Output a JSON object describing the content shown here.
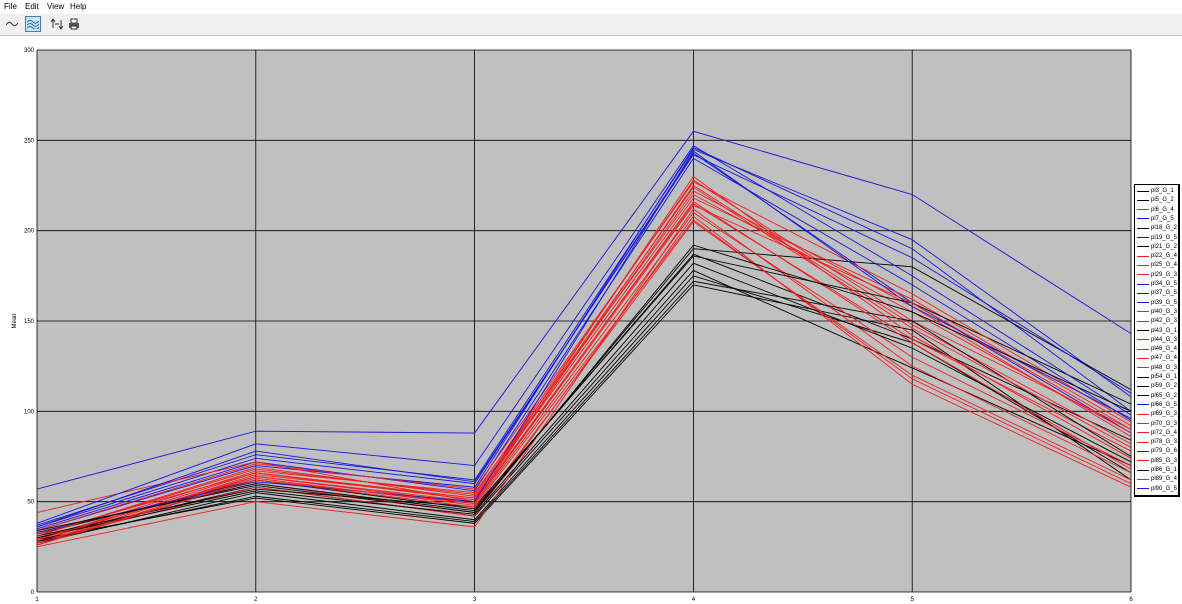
{
  "menu": {
    "items": [
      "File",
      "Edit",
      "View",
      "Help"
    ]
  },
  "toolbar": {
    "buttons": [
      {
        "icon": "line-chart-icon",
        "active": false
      },
      {
        "icon": "area-chart-icon",
        "active": true
      },
      {
        "icon": "axis-swap-icon",
        "active": false
      },
      {
        "icon": "print-icon",
        "active": false
      }
    ]
  },
  "colors": {
    "plot_bg": "#c0c0c0",
    "black": "#000000",
    "blue": "#1616dc",
    "red": "#f01e1e"
  },
  "chart_data": {
    "type": "line",
    "ylabel": "Mean",
    "xlabel": "",
    "categories": [
      "1",
      "2",
      "3",
      "4",
      "5",
      "6"
    ],
    "ylim": [
      0,
      300
    ],
    "yticks": [
      0,
      50,
      100,
      150,
      200,
      250,
      300
    ],
    "grid": true,
    "legend_position": "right",
    "series": [
      {
        "name": "pl3_G_1",
        "group": 1,
        "color": "#000000",
        "values": [
          32,
          62,
          46,
          187,
          140,
          84
        ]
      },
      {
        "name": "pl5_G_2",
        "group": 2,
        "color": "#000000",
        "values": [
          30,
          58,
          42,
          178,
          124,
          70
        ]
      },
      {
        "name": "pl6_G_4",
        "group": 4,
        "color": "#f01e1e",
        "values": [
          28,
          66,
          52,
          222,
          158,
          86
        ]
      },
      {
        "name": "pl7_G_5",
        "group": 5,
        "color": "#1616dc",
        "values": [
          34,
          70,
          58,
          246,
          190,
          100
        ]
      },
      {
        "name": "pl18_G_2",
        "group": 2,
        "color": "#000000",
        "values": [
          27,
          55,
          40,
          175,
          138,
          66
        ]
      },
      {
        "name": "pl19_G_5",
        "group": 5,
        "color": "#1616dc",
        "values": [
          36,
          74,
          60,
          243,
          160,
          88
        ]
      },
      {
        "name": "pl21_G_2",
        "group": 2,
        "color": "#000000",
        "values": [
          29,
          52,
          38,
          170,
          145,
          62
        ]
      },
      {
        "name": "pl22_G_4",
        "group": 4,
        "color": "#f01e1e",
        "values": [
          31,
          68,
          54,
          228,
          150,
          90
        ]
      },
      {
        "name": "pl25_G_4",
        "group": 4,
        "color": "#f01e1e",
        "values": [
          26,
          64,
          50,
          215,
          140,
          78
        ]
      },
      {
        "name": "pl29_G_3",
        "group": 3,
        "color": "#f01e1e",
        "values": [
          33,
          60,
          44,
          205,
          120,
          62
        ]
      },
      {
        "name": "pl34_G_5",
        "group": 5,
        "color": "#1616dc",
        "values": [
          37,
          76,
          62,
          245,
          195,
          108
        ]
      },
      {
        "name": "pl37_G_5",
        "group": 5,
        "color": "#1616dc",
        "values": [
          35,
          72,
          56,
          240,
          170,
          95
        ]
      },
      {
        "name": "pl39_G_5",
        "group": 5,
        "color": "#1616dc",
        "values": [
          57,
          89,
          88,
          255,
          220,
          143
        ]
      },
      {
        "name": "pl40_G_3",
        "group": 3,
        "color": "#f01e1e",
        "values": [
          30,
          63,
          48,
          210,
          130,
          70
        ]
      },
      {
        "name": "pl42_G_3",
        "group": 3,
        "color": "#f01e1e",
        "values": [
          28,
          58,
          42,
          208,
          115,
          58
        ]
      },
      {
        "name": "pl43_G_1",
        "group": 1,
        "color": "#000000",
        "values": [
          33,
          60,
          45,
          190,
          180,
          112
        ]
      },
      {
        "name": "pl44_G_3",
        "group": 3,
        "color": "#f01e1e",
        "values": [
          44,
          72,
          50,
          225,
          148,
          82
        ]
      },
      {
        "name": "pl46_G_4",
        "group": 4,
        "color": "#f01e1e",
        "values": [
          27,
          65,
          52,
          218,
          162,
          92
        ]
      },
      {
        "name": "pl47_G_4",
        "group": 4,
        "color": "#f01e1e",
        "values": [
          29,
          67,
          55,
          220,
          155,
          88
        ]
      },
      {
        "name": "pl48_G_3",
        "group": 3,
        "color": "#f01e1e",
        "values": [
          25,
          50,
          36,
          212,
          125,
          66
        ]
      },
      {
        "name": "pl54_G_1",
        "group": 1,
        "color": "#000000",
        "values": [
          31,
          57,
          47,
          186,
          160,
          104
        ]
      },
      {
        "name": "pl59_G_2",
        "group": 2,
        "color": "#000000",
        "values": [
          28,
          53,
          39,
          172,
          150,
          75
        ]
      },
      {
        "name": "pl65_G_2",
        "group": 2,
        "color": "#000000",
        "values": [
          30,
          56,
          43,
          182,
          135,
          72
        ]
      },
      {
        "name": "pl66_G_5",
        "group": 5,
        "color": "#1616dc",
        "values": [
          38,
          82,
          70,
          247,
          175,
          98
        ]
      },
      {
        "name": "pl69_G_3",
        "group": 3,
        "color": "#f01e1e",
        "values": [
          32,
          66,
          51,
          230,
          142,
          74
        ]
      },
      {
        "name": "pl70_G_3",
        "group": 3,
        "color": "#f01e1e",
        "values": [
          26,
          62,
          47,
          206,
          118,
          60
        ]
      },
      {
        "name": "pl72_G_4",
        "group": 4,
        "color": "#f01e1e",
        "values": [
          34,
          71,
          57,
          227,
          165,
          94
        ]
      },
      {
        "name": "pl78_G_3",
        "group": 3,
        "color": "#f01e1e",
        "values": [
          29,
          64,
          49,
          216,
          138,
          68
        ]
      },
      {
        "name": "pl79_G_6",
        "group": 6,
        "color": "#1616dc",
        "values": [
          33,
          61,
          50,
          244,
          158,
          96
        ]
      },
      {
        "name": "pl85_G_3",
        "group": 3,
        "color": "#f01e1e",
        "values": [
          31,
          69,
          53,
          224,
          146,
          80
        ]
      },
      {
        "name": "pl86_G_1",
        "group": 1,
        "color": "#000000",
        "values": [
          34,
          59,
          44,
          192,
          155,
          100
        ]
      },
      {
        "name": "pl89_G_4",
        "group": 4,
        "color": "#f01e1e",
        "values": [
          27,
          62,
          49,
          214,
          160,
          90
        ]
      },
      {
        "name": "pl90_G_5",
        "group": 5,
        "color": "#1616dc",
        "values": [
          36,
          78,
          61,
          242,
          185,
          110
        ]
      }
    ]
  }
}
